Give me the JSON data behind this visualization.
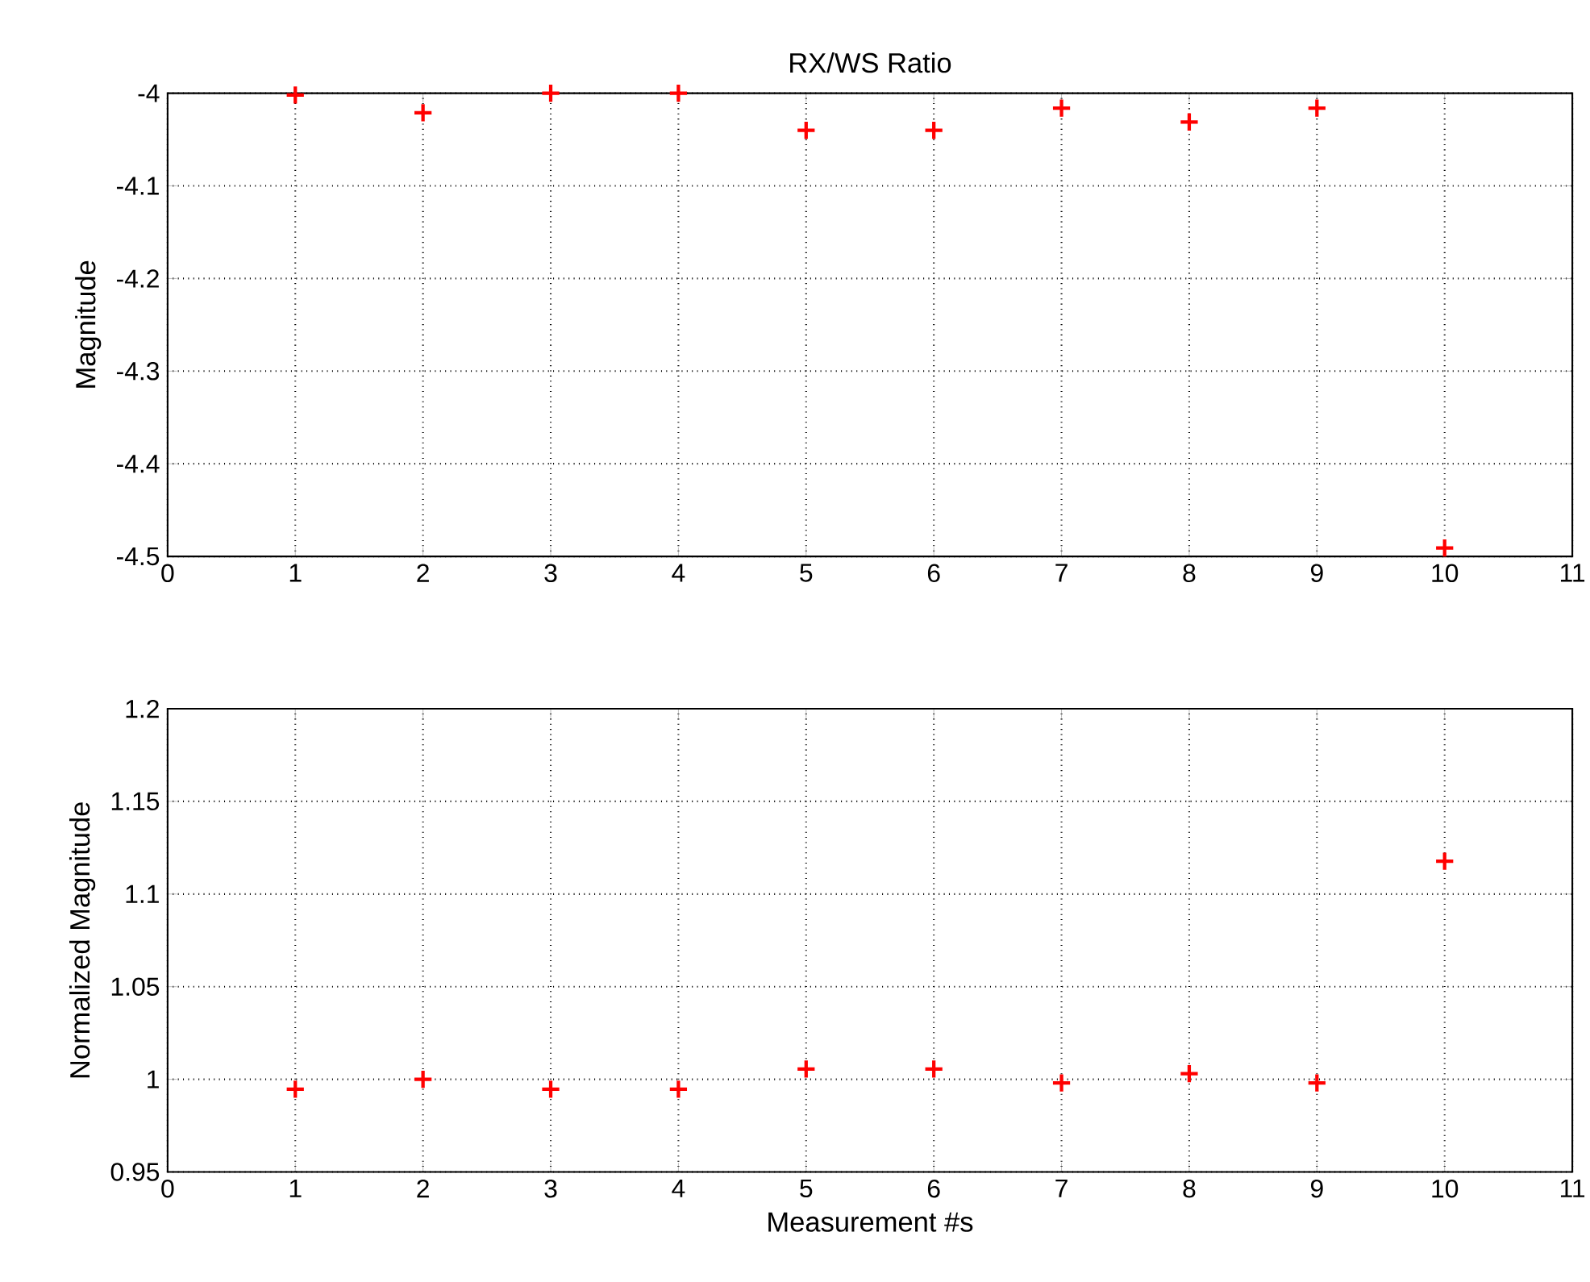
{
  "chart_data": [
    {
      "type": "scatter",
      "title": "RX/WS Ratio",
      "ylabel": "Magnitude",
      "x": [
        1,
        2,
        3,
        4,
        5,
        6,
        7,
        8,
        9,
        10
      ],
      "series": [
        {
          "color": "#ff0000",
          "values": [
            -4.002,
            -4.021,
            -4.0,
            -4.0,
            -4.04,
            -4.04,
            -4.016,
            -4.031,
            -4.016,
            -4.491
          ]
        }
      ],
      "xlim": [
        0,
        11
      ],
      "xticks": [
        0,
        1,
        2,
        3,
        4,
        5,
        6,
        7,
        8,
        9,
        10,
        11
      ],
      "ylim": [
        -4.5,
        -4
      ],
      "yticks": [
        -4.5,
        -4.4,
        -4.3,
        -4.2,
        -4.1,
        -4
      ],
      "grid": true,
      "marker": "cross"
    },
    {
      "type": "scatter",
      "xlabel": "Measurement #s",
      "ylabel": "Normalized Magnitude",
      "x": [
        1,
        2,
        3,
        4,
        5,
        6,
        7,
        8,
        9,
        10
      ],
      "series": [
        {
          "color": "#ff0000",
          "values": [
            0.9946,
            1.0,
            0.9946,
            0.9946,
            1.0055,
            1.0055,
            0.998,
            1.003,
            0.998,
            1.1177
          ]
        }
      ],
      "xlim": [
        0,
        11
      ],
      "xticks": [
        0,
        1,
        2,
        3,
        4,
        5,
        6,
        7,
        8,
        9,
        10,
        11
      ],
      "ylim": [
        0.95,
        1.2
      ],
      "yticks": [
        0.95,
        1,
        1.05,
        1.1,
        1.15,
        1.2
      ],
      "grid": true,
      "marker": "cross"
    }
  ]
}
